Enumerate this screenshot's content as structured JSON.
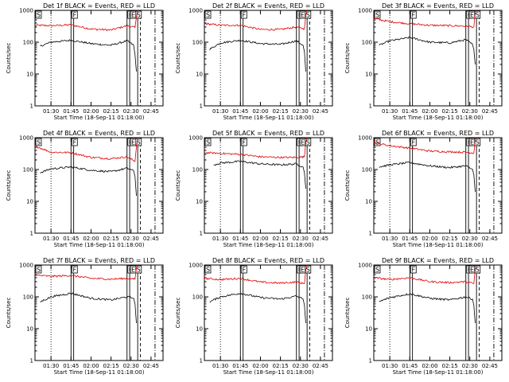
{
  "chart_data": [
    {
      "type": "line",
      "title": "Det 1f BLACK = Events, RED = LLD",
      "xlabel": "Start Time (18-Sep-11 01:18:00)",
      "ylabel": "Counts/sec",
      "ylog": true,
      "ylim": [
        1,
        1000
      ],
      "yticks": [
        "1",
        "10",
        "100",
        "1000"
      ],
      "xticks": [
        "01:30",
        "01:45",
        "02:00",
        "02:15",
        "02:30",
        "02:45"
      ],
      "flags": [
        "S",
        "F",
        "E",
        "E",
        "S"
      ],
      "series": [
        {
          "name": "LLD",
          "color": "#e00000",
          "x": [
            "01:18",
            "01:30",
            "01:45",
            "02:00",
            "02:15",
            "02:27",
            "02:33",
            "02:34",
            "02:35"
          ],
          "y": [
            340,
            330,
            350,
            260,
            240,
            330,
            290,
            600,
            1000
          ]
        },
        {
          "name": "Events",
          "color": "#000000",
          "x": [
            "01:22",
            "01:30",
            "01:45",
            "02:00",
            "02:15",
            "02:27",
            "02:32",
            "02:33",
            "02:34"
          ],
          "y": [
            75,
            100,
            115,
            90,
            80,
            110,
            80,
            40,
            12
          ]
        }
      ]
    },
    {
      "type": "line",
      "title": "Det 2f BLACK = Events, RED = LLD",
      "xlabel": "Start Time (18-Sep-11 01:18:00)",
      "ylabel": "Counts/sec",
      "ylog": true,
      "ylim": [
        1,
        1000
      ],
      "yticks": [
        "1",
        "10",
        "100",
        "1000"
      ],
      "xticks": [
        "01:30",
        "01:45",
        "02:00",
        "02:15",
        "02:30",
        "02:45"
      ],
      "flags": [
        "S",
        "F",
        "E",
        "E",
        "S"
      ],
      "series": [
        {
          "name": "LLD",
          "color": "#e00000",
          "x": [
            "01:18",
            "01:30",
            "01:45",
            "02:00",
            "02:15",
            "02:27",
            "02:33",
            "02:34",
            "02:35"
          ],
          "y": [
            380,
            340,
            340,
            250,
            250,
            300,
            260,
            700,
            1000
          ]
        },
        {
          "name": "Events",
          "color": "#000000",
          "x": [
            "01:22",
            "01:30",
            "01:45",
            "02:00",
            "02:15",
            "02:27",
            "02:32",
            "02:33",
            "02:34"
          ],
          "y": [
            60,
            95,
            115,
            90,
            85,
            110,
            80,
            50,
            12
          ]
        }
      ]
    },
    {
      "type": "line",
      "title": "Det 3f BLACK = Events, RED = LLD",
      "xlabel": "Start Time (18-Sep-11 01:18:00)",
      "ylabel": "Counts/sec",
      "ylog": true,
      "ylim": [
        1,
        1000
      ],
      "yticks": [
        "1",
        "10",
        "100",
        "1000"
      ],
      "xticks": [
        "01:30",
        "01:45",
        "02:00",
        "02:15",
        "02:30",
        "02:45"
      ],
      "flags": [
        "S",
        "F",
        "E",
        "E",
        "S"
      ],
      "series": [
        {
          "name": "LLD",
          "color": "#e00000",
          "x": [
            "01:18",
            "01:30",
            "01:45",
            "02:00",
            "02:15",
            "02:27",
            "02:33",
            "02:34",
            "02:35"
          ],
          "y": [
            550,
            440,
            380,
            340,
            330,
            320,
            300,
            800,
            1000
          ]
        },
        {
          "name": "Events",
          "color": "#000000",
          "x": [
            "01:22",
            "01:30",
            "01:45",
            "02:00",
            "02:15",
            "02:27",
            "02:32",
            "02:33",
            "02:34"
          ],
          "y": [
            80,
            110,
            140,
            100,
            95,
            120,
            85,
            60,
            20
          ]
        }
      ]
    },
    {
      "type": "line",
      "title": "Det 4f BLACK = Events, RED = LLD",
      "xlabel": "Start Time (18-Sep-11 01:18:00)",
      "ylabel": "Counts/sec",
      "ylog": true,
      "ylim": [
        1,
        1000
      ],
      "yticks": [
        "1",
        "10",
        "100",
        "1000"
      ],
      "xticks": [
        "01:30",
        "01:45",
        "02:00",
        "02:15",
        "02:30",
        "02:45"
      ],
      "flags": [
        "S",
        "F",
        "E",
        "E",
        "S"
      ],
      "series": [
        {
          "name": "LLD",
          "color": "#e00000",
          "x": [
            "01:18",
            "01:30",
            "01:45",
            "02:00",
            "02:15",
            "02:27",
            "02:33",
            "02:34",
            "02:35"
          ],
          "y": [
            550,
            350,
            340,
            240,
            220,
            250,
            180,
            500,
            1000
          ]
        },
        {
          "name": "Events",
          "color": "#000000",
          "x": [
            "01:22",
            "01:30",
            "01:45",
            "02:00",
            "02:15",
            "02:27",
            "02:32",
            "02:33",
            "02:34"
          ],
          "y": [
            80,
            105,
            120,
            95,
            85,
            110,
            90,
            60,
            15
          ]
        }
      ]
    },
    {
      "type": "line",
      "title": "Det 5f BLACK = Events, RED = LLD",
      "xlabel": "Start Time (18-Sep-11 01:18:00)",
      "ylabel": "Counts/sec",
      "ylog": true,
      "ylim": [
        1,
        1000
      ],
      "yticks": [
        "1",
        "10",
        "100",
        "1000"
      ],
      "xticks": [
        "01:30",
        "01:45",
        "02:00",
        "02:15",
        "02:30",
        "02:45"
      ],
      "flags": [
        "S",
        "F",
        "E",
        "E",
        "S"
      ],
      "series": [
        {
          "name": "LLD",
          "color": "#e00000",
          "x": [
            "01:18",
            "01:30",
            "01:45",
            "02:00",
            "02:15",
            "02:27",
            "02:33",
            "02:34",
            "02:35"
          ],
          "y": [
            340,
            320,
            300,
            250,
            240,
            240,
            250,
            700,
            1000
          ]
        },
        {
          "name": "Events",
          "color": "#000000",
          "x": [
            "01:25",
            "01:30",
            "01:45",
            "02:00",
            "02:15",
            "02:27",
            "02:32",
            "02:33",
            "02:34"
          ],
          "y": [
            140,
            160,
            180,
            150,
            140,
            150,
            120,
            80,
            25
          ]
        }
      ]
    },
    {
      "type": "line",
      "title": "Det 6f BLACK = Events, RED = LLD",
      "xlabel": "Start Time (18-Sep-11 01:18:00)",
      "ylabel": "Counts/sec",
      "ylog": true,
      "ylim": [
        1,
        1000
      ],
      "yticks": [
        "1",
        "10",
        "100",
        "1000"
      ],
      "xticks": [
        "01:30",
        "01:45",
        "02:00",
        "02:15",
        "02:30",
        "02:45"
      ],
      "flags": [
        "S",
        "F",
        "E",
        "E",
        "S"
      ],
      "series": [
        {
          "name": "LLD",
          "color": "#e00000",
          "x": [
            "01:18",
            "01:30",
            "01:45",
            "02:00",
            "02:15",
            "02:27",
            "02:33",
            "02:34",
            "02:35"
          ],
          "y": [
            700,
            560,
            470,
            380,
            360,
            350,
            330,
            800,
            1000
          ]
        },
        {
          "name": "Events",
          "color": "#000000",
          "x": [
            "01:22",
            "01:30",
            "01:45",
            "02:00",
            "02:15",
            "02:27",
            "02:32",
            "02:33",
            "02:34"
          ],
          "y": [
            120,
            140,
            165,
            130,
            115,
            130,
            100,
            70,
            20
          ]
        }
      ]
    },
    {
      "type": "line",
      "title": "Det 7f BLACK = Events, RED = LLD",
      "xlabel": "Start Time (18-Sep-11 01:18:00)",
      "ylabel": "Counts/sec",
      "ylog": true,
      "ylim": [
        1,
        1000
      ],
      "yticks": [
        "1",
        "10",
        "100",
        "1000"
      ],
      "xticks": [
        "01:30",
        "01:45",
        "02:00",
        "02:15",
        "02:30",
        "02:45"
      ],
      "flags": [
        "S",
        "F",
        "E",
        "E",
        "S"
      ],
      "series": [
        {
          "name": "LLD",
          "color": "#e00000",
          "x": [
            "01:18",
            "01:30",
            "01:45",
            "02:00",
            "02:15",
            "02:27",
            "02:33",
            "02:34",
            "02:35"
          ],
          "y": [
            480,
            440,
            470,
            380,
            360,
            380,
            360,
            800,
            1000
          ]
        },
        {
          "name": "Events",
          "color": "#000000",
          "x": [
            "01:22",
            "01:30",
            "01:45",
            "02:00",
            "02:15",
            "02:27",
            "02:32",
            "02:33",
            "02:34"
          ],
          "y": [
            70,
            100,
            130,
            90,
            80,
            100,
            90,
            60,
            15
          ]
        }
      ]
    },
    {
      "type": "line",
      "title": "Det 8f BLACK = Events, RED = LLD",
      "xlabel": "Start Time (18-Sep-11 01:18:00)",
      "ylabel": "Counts/sec",
      "ylog": true,
      "ylim": [
        1,
        1000
      ],
      "yticks": [
        "1",
        "10",
        "100",
        "1000"
      ],
      "xticks": [
        "01:30",
        "01:45",
        "02:00",
        "02:15",
        "02:30",
        "02:45"
      ],
      "flags": [
        "S",
        "F",
        "E",
        "E",
        "S"
      ],
      "series": [
        {
          "name": "LLD",
          "color": "#e00000",
          "x": [
            "01:18",
            "01:30",
            "01:45",
            "02:00",
            "02:15",
            "02:27",
            "02:33",
            "02:34",
            "02:35"
          ],
          "y": [
            380,
            350,
            380,
            290,
            270,
            290,
            260,
            700,
            1000
          ]
        },
        {
          "name": "Events",
          "color": "#000000",
          "x": [
            "01:22",
            "01:30",
            "01:45",
            "02:00",
            "02:15",
            "02:27",
            "02:32",
            "02:33",
            "02:34"
          ],
          "y": [
            70,
            100,
            130,
            95,
            85,
            105,
            85,
            55,
            15
          ]
        }
      ]
    },
    {
      "type": "line",
      "title": "Det 9f BLACK = Events, RED = LLD",
      "xlabel": "Start Time (18-Sep-11 01:18:00)",
      "ylabel": "Counts/sec",
      "ylog": true,
      "ylim": [
        1,
        1000
      ],
      "yticks": [
        "1",
        "10",
        "100",
        "1000"
      ],
      "xticks": [
        "01:30",
        "01:45",
        "02:00",
        "02:15",
        "02:30",
        "02:45"
      ],
      "flags": [
        "S",
        "F",
        "E",
        "E",
        "S"
      ],
      "series": [
        {
          "name": "LLD",
          "color": "#e00000",
          "x": [
            "01:18",
            "01:30",
            "01:45",
            "02:00",
            "02:15",
            "02:27",
            "02:33",
            "02:34",
            "02:35"
          ],
          "y": [
            400,
            350,
            400,
            300,
            280,
            300,
            260,
            700,
            1000
          ]
        },
        {
          "name": "Events",
          "color": "#000000",
          "x": [
            "01:22",
            "01:30",
            "01:45",
            "02:00",
            "02:15",
            "02:27",
            "02:32",
            "02:33",
            "02:34"
          ],
          "y": [
            70,
            95,
            125,
            90,
            80,
            100,
            85,
            55,
            15
          ]
        }
      ]
    }
  ]
}
